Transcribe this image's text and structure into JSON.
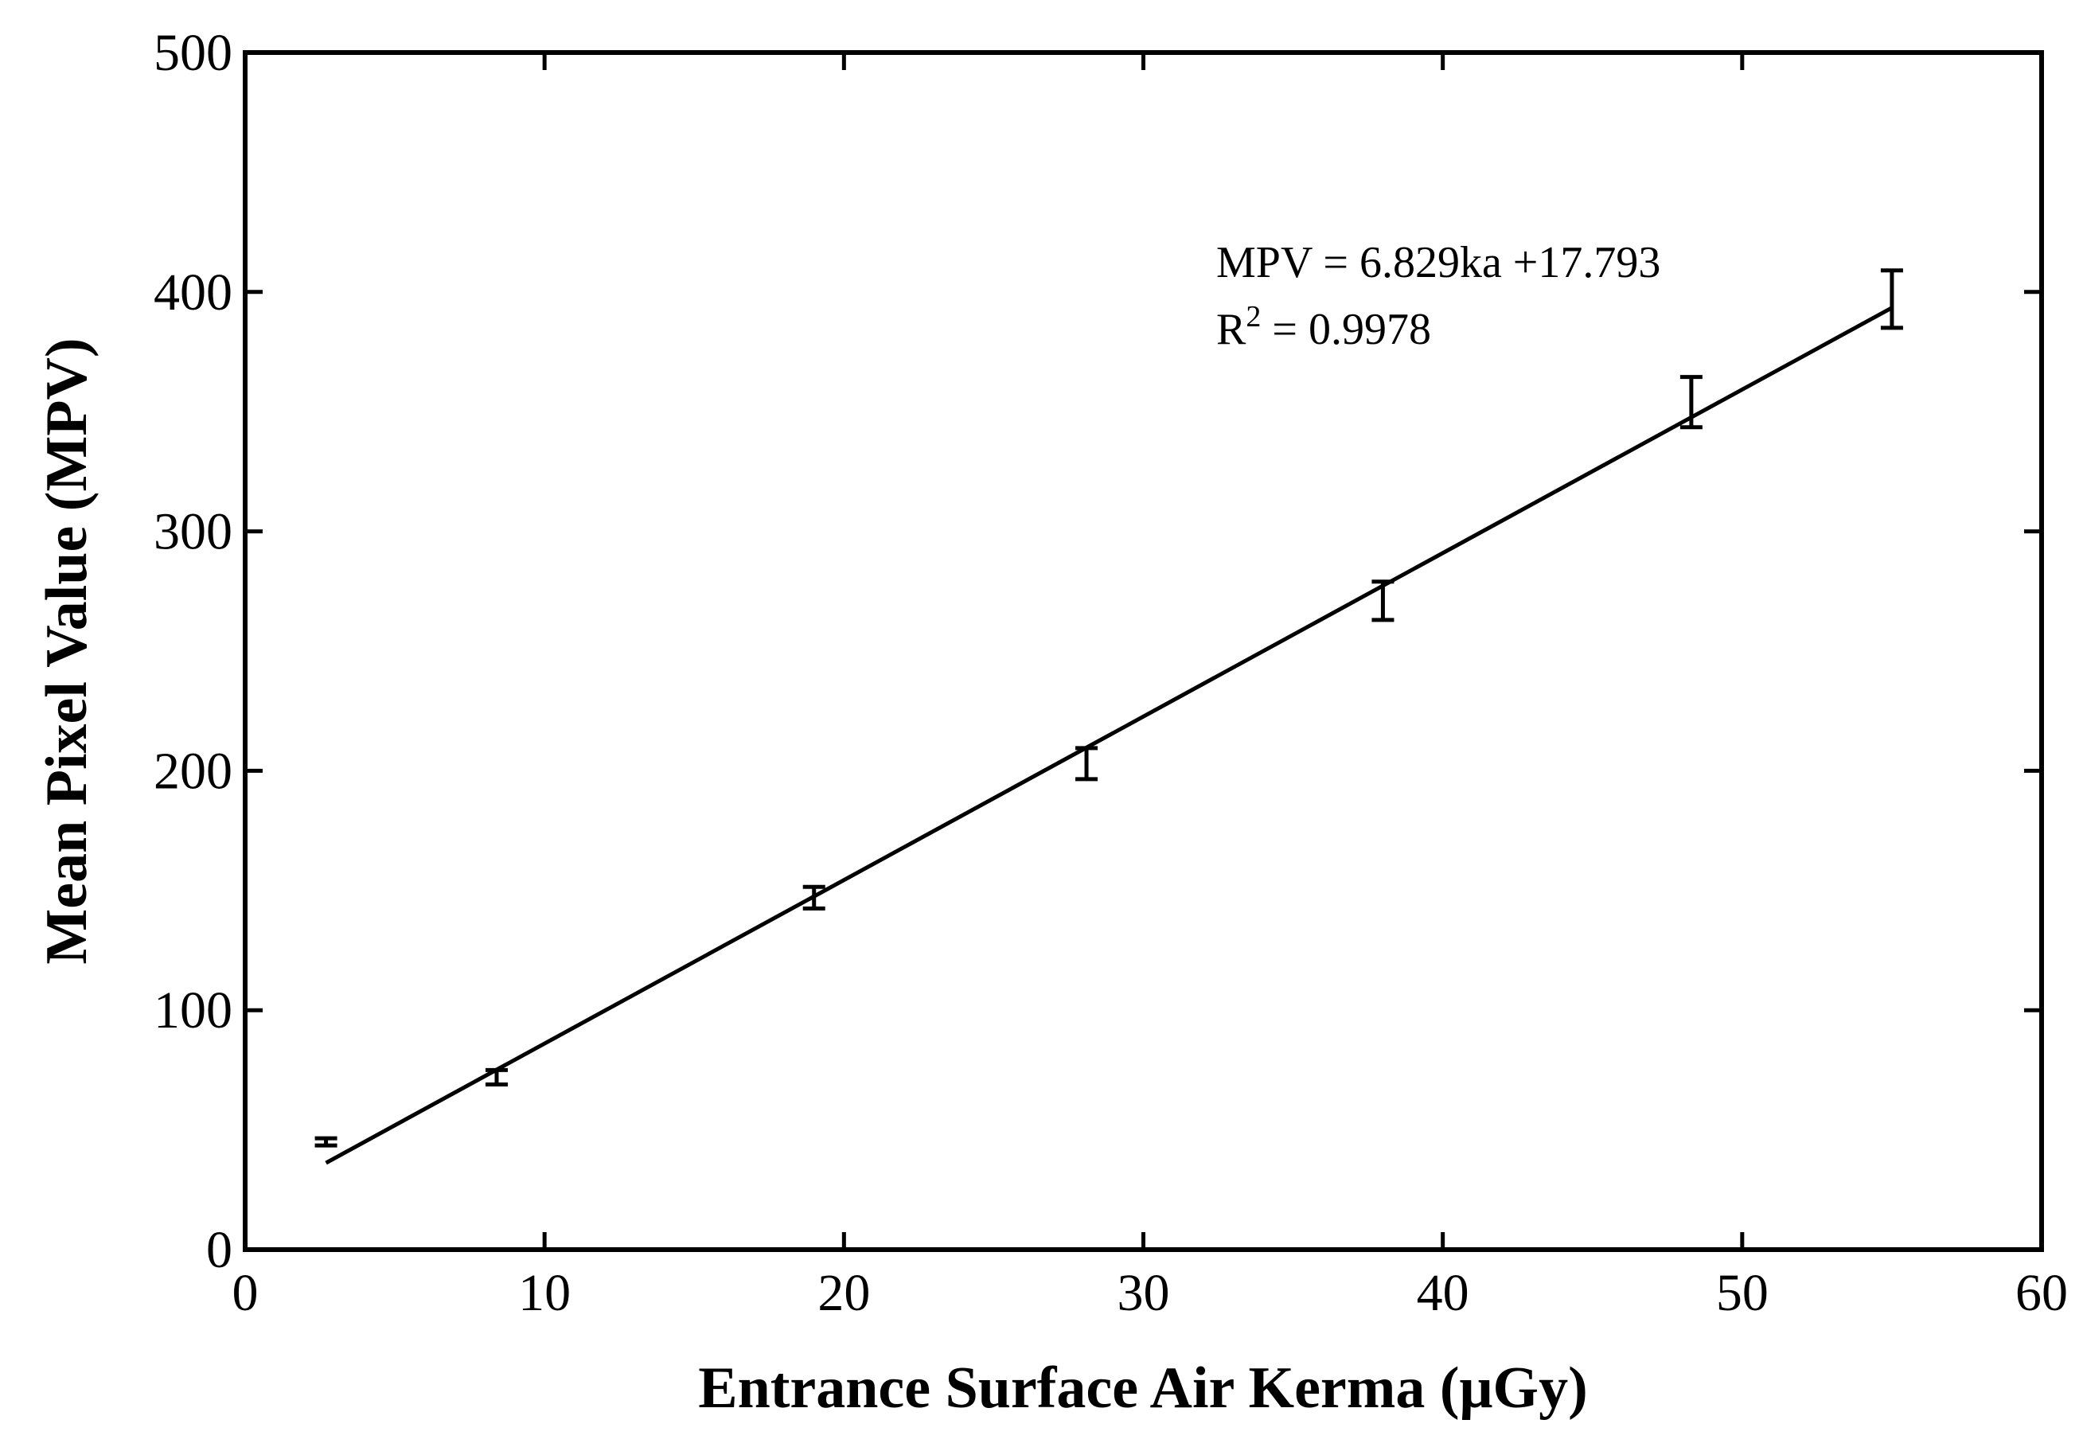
{
  "chart_data": {
    "type": "scatter",
    "title": "",
    "xlabel": "Entrance Surface Air Kerma (μGy)",
    "ylabel": "Mean Pixel Value (MPV)",
    "xlim": [
      0,
      60
    ],
    "ylim": [
      0,
      500
    ],
    "xticks": [
      "0",
      "10",
      "20",
      "30",
      "40",
      "50",
      "60"
    ],
    "yticks": [
      "0",
      "100",
      "200",
      "300",
      "400",
      "500"
    ],
    "grid": false,
    "legend": "none",
    "series": [
      {
        "values": [
          {
            "x": 2.7,
            "y": 45,
            "err": 1.5
          },
          {
            "x": 8.4,
            "y": 72,
            "err": 3
          },
          {
            "x": 19.0,
            "y": 147,
            "err": 4.5
          },
          {
            "x": 28.1,
            "y": 203,
            "err": 6.5
          },
          {
            "x": 38.0,
            "y": 271,
            "err": 8
          },
          {
            "x": 48.3,
            "y": 354,
            "err": 10.5
          },
          {
            "x": 55.0,
            "y": 397,
            "err": 12
          }
        ]
      }
    ],
    "fit_line": {
      "x": [
        2.7,
        55.0
      ],
      "slope": 6.829,
      "intercept": 17.793
    },
    "annotations": {
      "equation": "MPV = 6.829ka +17.793",
      "r2_prefix": "R",
      "r2_superscript": "2",
      "r2_value": " = 0.9978"
    },
    "colors": {
      "line": "#000000",
      "background": "#ffffff"
    }
  }
}
